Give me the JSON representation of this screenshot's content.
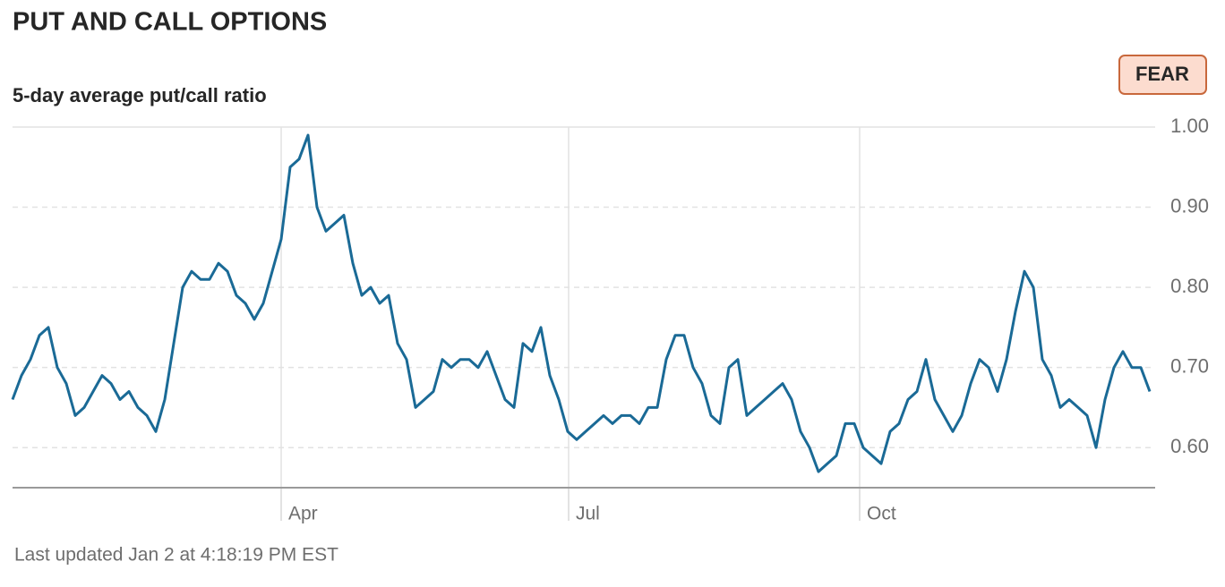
{
  "chart_data": {
    "type": "line",
    "title": "PUT AND CALL OPTIONS",
    "subtitle": "5-day average put/call ratio",
    "annotation": "FEAR",
    "footnote": "Last updated Jan 2 at 4:18:19 PM EST",
    "color": "#1a6a96",
    "values": [
      0.66,
      0.69,
      0.71,
      0.74,
      0.75,
      0.7,
      0.68,
      0.64,
      0.65,
      0.67,
      0.69,
      0.68,
      0.66,
      0.67,
      0.65,
      0.64,
      0.62,
      0.66,
      0.73,
      0.8,
      0.82,
      0.81,
      0.81,
      0.83,
      0.82,
      0.79,
      0.78,
      0.76,
      0.78,
      0.82,
      0.86,
      0.95,
      0.96,
      0.99,
      0.9,
      0.87,
      0.88,
      0.89,
      0.83,
      0.79,
      0.8,
      0.78,
      0.79,
      0.73,
      0.71,
      0.65,
      0.66,
      0.67,
      0.71,
      0.7,
      0.71,
      0.71,
      0.7,
      0.72,
      0.69,
      0.66,
      0.65,
      0.73,
      0.72,
      0.75,
      0.69,
      0.66,
      0.62,
      0.61,
      0.62,
      0.63,
      0.64,
      0.63,
      0.64,
      0.64,
      0.63,
      0.65,
      0.65,
      0.71,
      0.74,
      0.74,
      0.7,
      0.68,
      0.64,
      0.63,
      0.7,
      0.71,
      0.64,
      0.65,
      0.66,
      0.67,
      0.68,
      0.66,
      0.62,
      0.6,
      0.57,
      0.58,
      0.59,
      0.63,
      0.63,
      0.6,
      0.59,
      0.58,
      0.62,
      0.63,
      0.66,
      0.67,
      0.71,
      0.66,
      0.64,
      0.62,
      0.64,
      0.68,
      0.71,
      0.7,
      0.67,
      0.71,
      0.77,
      0.82,
      0.8,
      0.71,
      0.69,
      0.65,
      0.66,
      0.65,
      0.64,
      0.6,
      0.66,
      0.7,
      0.72,
      0.7,
      0.7,
      0.67
    ],
    "xlim": [
      0,
      127.6
    ],
    "xticks": [
      {
        "value": 30,
        "label": "Apr"
      },
      {
        "value": 62.1,
        "label": "Jul"
      },
      {
        "value": 94.6,
        "label": "Oct"
      }
    ],
    "ylim": [
      0.55,
      1
    ],
    "yticks": [
      {
        "value": 0.6,
        "label": "0.60"
      },
      {
        "value": 0.7,
        "label": "0.70"
      },
      {
        "value": 0.8,
        "label": "0.80"
      },
      {
        "value": 0.9,
        "label": "0.90"
      },
      {
        "value": 1,
        "label": "1.00"
      }
    ],
    "grid": true
  }
}
